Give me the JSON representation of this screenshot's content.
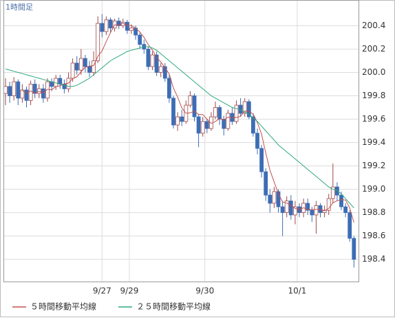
{
  "chart_data": {
    "type": "candlestick",
    "title": "1時間足",
    "open": [
      199.82,
      199.88,
      199.8,
      199.92,
      199.78,
      199.85,
      199.76,
      199.9,
      199.82,
      199.86,
      199.78,
      199.92,
      199.88,
      199.95,
      199.9,
      199.86,
      199.95,
      200.08,
      200.02,
      200.12,
      200.05,
      200.0,
      200.1,
      200.42,
      200.35,
      200.45,
      200.38,
      200.44,
      200.4,
      200.43,
      200.36,
      200.38,
      200.32,
      200.24,
      200.2,
      200.05,
      200.15,
      200.0,
      200.05,
      199.95,
      199.78,
      199.55,
      199.62,
      199.58,
      199.72,
      199.8,
      199.62,
      199.48,
      199.58,
      199.52,
      199.62,
      199.7,
      199.6,
      199.52,
      199.65,
      199.58,
      199.72,
      199.65,
      199.75,
      199.62,
      199.48,
      199.35,
      199.15,
      198.95,
      198.88,
      198.98,
      198.85,
      198.8,
      198.9,
      198.78,
      198.85,
      198.8,
      198.88,
      198.82,
      198.78,
      198.86,
      198.8,
      198.82,
      198.92,
      199.02,
      198.95,
      198.85,
      198.8,
      198.58
    ],
    "high": [
      199.95,
      199.92,
      199.96,
      199.94,
      199.9,
      199.88,
      199.93,
      199.94,
      199.9,
      199.9,
      199.95,
      199.95,
      199.98,
      199.98,
      199.94,
      200.0,
      200.12,
      200.14,
      200.2,
      200.15,
      200.1,
      200.18,
      200.48,
      200.5,
      200.48,
      200.47,
      200.46,
      200.47,
      200.46,
      200.45,
      200.41,
      200.4,
      200.34,
      200.28,
      200.22,
      200.18,
      200.18,
      200.08,
      200.08,
      199.98,
      199.8,
      199.66,
      199.68,
      199.76,
      199.84,
      199.82,
      199.64,
      199.62,
      199.6,
      199.66,
      199.75,
      199.72,
      199.63,
      199.68,
      199.7,
      199.76,
      199.78,
      199.78,
      199.77,
      199.65,
      199.52,
      199.38,
      199.18,
      199.0,
      199.02,
      199.0,
      198.9,
      198.94,
      198.95,
      198.9,
      198.88,
      198.92,
      198.92,
      198.85,
      198.9,
      198.88,
      198.86,
      198.96,
      199.22,
      199.06,
      198.98,
      198.88,
      198.82,
      198.6
    ],
    "low": [
      199.72,
      199.74,
      199.76,
      199.72,
      199.74,
      199.7,
      199.72,
      199.78,
      199.78,
      199.74,
      199.75,
      199.84,
      199.85,
      199.86,
      199.82,
      199.83,
      199.92,
      199.98,
      199.98,
      200.0,
      199.96,
      199.97,
      200.08,
      200.3,
      200.32,
      200.34,
      200.35,
      200.37,
      200.38,
      200.33,
      200.33,
      200.28,
      200.2,
      200.16,
      200.02,
      200.02,
      199.97,
      199.96,
      199.92,
      199.74,
      199.52,
      199.5,
      199.54,
      199.56,
      199.7,
      199.58,
      199.36,
      199.45,
      199.48,
      199.5,
      199.6,
      199.55,
      199.46,
      199.5,
      199.55,
      199.56,
      199.62,
      199.62,
      199.6,
      199.45,
      199.3,
      199.1,
      198.9,
      198.8,
      198.84,
      198.8,
      198.6,
      198.76,
      198.74,
      198.7,
      198.76,
      198.76,
      198.78,
      198.72,
      198.62,
      198.76,
      198.76,
      198.78,
      198.88,
      198.9,
      198.82,
      198.76,
      198.55,
      198.33
    ],
    "close": [
      199.88,
      199.8,
      199.92,
      199.78,
      199.85,
      199.76,
      199.9,
      199.82,
      199.86,
      199.78,
      199.92,
      199.88,
      199.95,
      199.9,
      199.86,
      199.95,
      200.08,
      200.02,
      200.12,
      200.05,
      200.0,
      200.1,
      200.42,
      200.35,
      200.45,
      200.38,
      200.44,
      200.4,
      200.43,
      200.36,
      200.38,
      200.32,
      200.24,
      200.2,
      200.05,
      200.15,
      200.0,
      200.05,
      199.95,
      199.78,
      199.55,
      199.62,
      199.58,
      199.72,
      199.8,
      199.62,
      199.48,
      199.58,
      199.52,
      199.62,
      199.7,
      199.6,
      199.52,
      199.65,
      199.58,
      199.72,
      199.65,
      199.75,
      199.62,
      199.48,
      199.35,
      199.15,
      198.95,
      198.88,
      198.98,
      198.85,
      198.8,
      198.9,
      198.78,
      198.85,
      198.8,
      198.88,
      198.82,
      198.78,
      198.86,
      198.8,
      198.82,
      198.92,
      199.02,
      198.95,
      198.85,
      198.8,
      198.58,
      198.4
    ],
    "up_color": "#ffffff",
    "down_color": "#3d6db5",
    "candle_edge": "#a04848",
    "series": [
      {
        "name": "５時間移動平均線",
        "color": "#c0504d",
        "values": [
          null,
          null,
          null,
          null,
          199.846,
          199.822,
          199.842,
          199.822,
          199.838,
          199.824,
          199.856,
          199.852,
          199.878,
          199.886,
          199.902,
          199.908,
          199.948,
          199.962,
          200.006,
          200.044,
          200.054,
          200.058,
          200.138,
          200.184,
          200.264,
          200.34,
          200.408,
          200.404,
          200.42,
          200.402,
          200.402,
          200.378,
          200.346,
          200.3,
          200.238,
          200.192,
          200.128,
          200.09,
          200.04,
          199.986,
          199.866,
          199.79,
          199.696,
          199.65,
          199.654,
          199.668,
          199.64,
          199.64,
          199.6,
          199.564,
          199.58,
          199.604,
          199.592,
          199.618,
          199.61,
          199.614,
          199.624,
          199.67,
          199.664,
          199.644,
          199.57,
          199.47,
          199.31,
          199.162,
          199.062,
          198.962,
          198.892,
          198.882,
          198.862,
          198.836,
          198.826,
          198.842,
          198.826,
          198.826,
          198.828,
          198.828,
          198.816,
          198.836,
          198.884,
          198.902,
          198.912,
          198.908,
          198.84,
          198.716
        ]
      },
      {
        "name": "２５時間移動平均線",
        "color": "#2ca87a",
        "values": [
          200.03,
          200.02,
          200.01,
          200.0,
          199.99,
          199.98,
          199.97,
          199.96,
          199.95,
          199.94,
          199.93,
          199.92,
          199.91,
          199.9,
          199.89,
          199.88,
          199.88,
          199.89,
          199.91,
          199.93,
          199.95,
          199.98,
          200.01,
          200.04,
          200.07,
          200.1,
          200.12,
          200.14,
          200.16,
          200.18,
          200.19,
          200.2,
          200.21,
          200.22,
          200.22,
          200.21,
          200.19,
          200.16,
          200.13,
          200.1,
          200.07,
          200.04,
          200.01,
          199.98,
          199.95,
          199.92,
          199.89,
          199.86,
          199.83,
          199.8,
          199.78,
          199.76,
          199.74,
          199.72,
          199.7,
          199.69,
          199.68,
          199.66,
          199.64,
          199.61,
          199.58,
          199.54,
          199.5,
          199.46,
          199.42,
          199.38,
          199.35,
          199.32,
          199.29,
          199.26,
          199.23,
          199.2,
          199.17,
          199.14,
          199.11,
          199.08,
          199.05,
          199.02,
          199.0,
          198.99,
          198.96,
          198.92,
          198.88,
          198.84
        ]
      }
    ],
    "xticks": [
      {
        "value": 23,
        "label": "9/27"
      },
      {
        "value": 29.5,
        "label": "9/29"
      },
      {
        "value": 47.5,
        "label": "9/30"
      },
      {
        "value": 69.5,
        "label": "10/1"
      }
    ],
    "ylim": [
      198.21,
      200.62
    ],
    "yticks": [
      198.4,
      198.6,
      198.8,
      {
        "value": 199,
        "label": "199.0"
      },
      199.2,
      199.4,
      199.6,
      199.8,
      {
        "value": 200,
        "label": "200.0"
      },
      200.2,
      200.4
    ],
    "grid": true
  }
}
